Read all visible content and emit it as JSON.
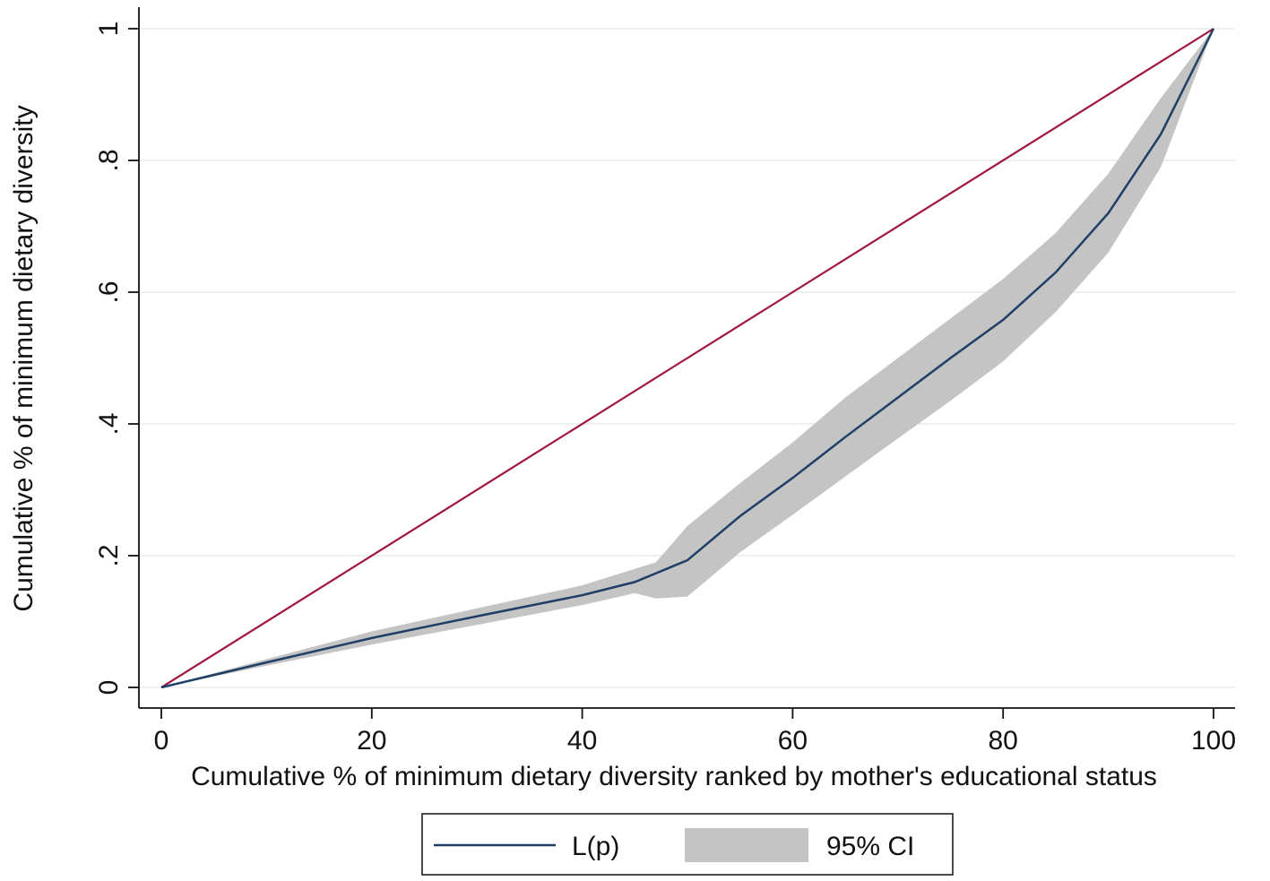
{
  "chart_data": {
    "type": "line",
    "title": "",
    "xlabel": "Cumulative % of minimum dietary diversity ranked by mother's educational status",
    "ylabel": "Cumulative % of minimum dietary diversity",
    "xlim": [
      0,
      100
    ],
    "ylim": [
      0,
      1
    ],
    "x_ticks": [
      0,
      20,
      40,
      60,
      80,
      100
    ],
    "x_tick_labels": [
      "0",
      "20",
      "40",
      "60",
      "80",
      "100"
    ],
    "y_ticks": [
      0,
      0.2,
      0.4,
      0.6,
      0.8,
      1
    ],
    "y_tick_labels": [
      "0",
      ".2",
      ".4",
      ".6",
      ".8",
      "1"
    ],
    "grid": "horizontal",
    "legend_position": "bottom",
    "series": [
      {
        "name": "L(p)",
        "kind": "line",
        "color": "#1f3f66",
        "x": [
          0,
          10,
          20,
          30,
          40,
          45,
          50,
          55,
          60,
          65,
          70,
          75,
          80,
          85,
          90,
          95,
          100
        ],
        "y": [
          0,
          0.038,
          0.075,
          0.108,
          0.14,
          0.16,
          0.193,
          0.26,
          0.318,
          0.38,
          0.44,
          0.5,
          0.558,
          0.63,
          0.72,
          0.84,
          1
        ]
      },
      {
        "name": "95% CI",
        "kind": "band",
        "color": "#c4c4c4",
        "x": [
          0,
          10,
          20,
          30,
          40,
          45,
          47,
          50,
          55,
          60,
          65,
          70,
          75,
          80,
          85,
          90,
          95,
          100
        ],
        "lower": [
          0,
          0.033,
          0.065,
          0.095,
          0.125,
          0.143,
          0.135,
          0.138,
          0.205,
          0.262,
          0.32,
          0.378,
          0.435,
          0.495,
          0.57,
          0.66,
          0.79,
          1
        ],
        "upper": [
          0,
          0.043,
          0.085,
          0.12,
          0.155,
          0.18,
          0.19,
          0.245,
          0.31,
          0.372,
          0.44,
          0.5,
          0.56,
          0.62,
          0.69,
          0.78,
          0.895,
          1
        ]
      },
      {
        "name": "equality line",
        "kind": "line",
        "color": "#a0173e",
        "x": [
          0,
          100
        ],
        "y": [
          0,
          1
        ]
      }
    ],
    "legend": [
      {
        "label": "L(p)",
        "kind": "line",
        "color": "#1f3f66"
      },
      {
        "label": "95% CI",
        "kind": "band",
        "color": "#c4c4c4"
      }
    ]
  }
}
